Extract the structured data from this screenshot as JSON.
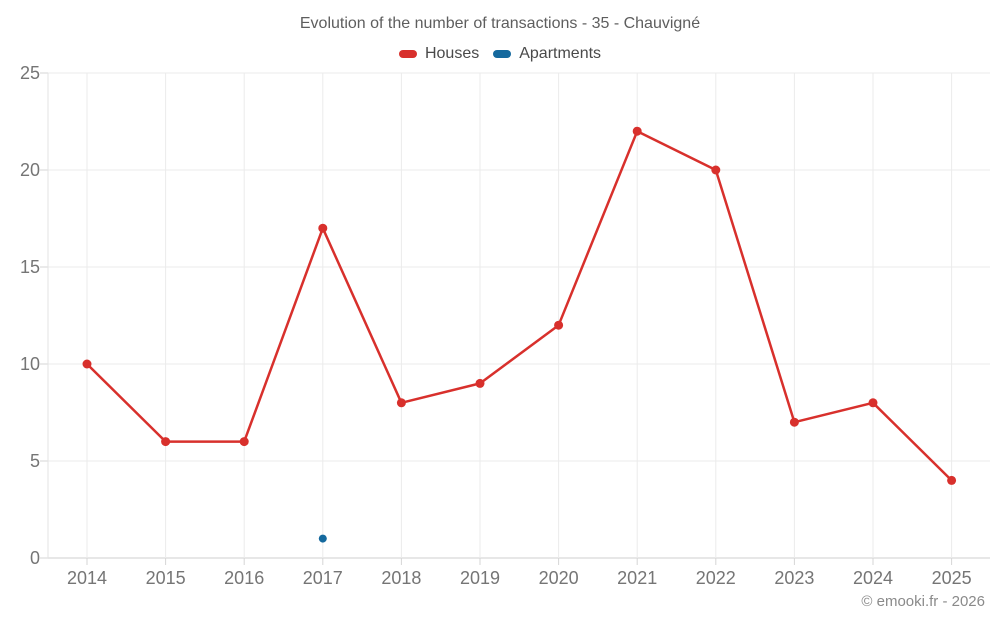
{
  "header": {
    "title": "Evolution of the number of transactions - 35 - Chauvigné"
  },
  "legend": {
    "items": [
      {
        "label": "Houses",
        "color": "#d8302c"
      },
      {
        "label": "Apartments",
        "color": "#15699e"
      }
    ]
  },
  "footer": {
    "copyright": "© emooki.fr - 2026"
  },
  "colors": {
    "houses": "#d8302c",
    "apartments": "#15699e",
    "gridline": "#ebebeb",
    "axis_line": "#cfcfcf",
    "tick_mark": "#d6d6d6",
    "tick_text": "#757575",
    "title_text": "#5e5e5e",
    "copyright_text": "#8a8a8a"
  },
  "chart_data": {
    "type": "line",
    "title": "Evolution of the number of transactions - 35 - Chauvigné",
    "x": [
      2014,
      2015,
      2016,
      2017,
      2018,
      2019,
      2020,
      2021,
      2022,
      2023,
      2024,
      2025
    ],
    "series": [
      {
        "name": "Houses",
        "color": "#d8302c",
        "marker_radius": 4.5,
        "values": [
          10,
          6,
          6,
          17,
          8,
          9,
          12,
          22,
          20,
          7,
          8,
          4
        ]
      },
      {
        "name": "Apartments",
        "color": "#15699e",
        "marker_radius": 4,
        "values": [
          null,
          null,
          null,
          1,
          null,
          null,
          null,
          null,
          null,
          null,
          null,
          null
        ]
      }
    ],
    "xlabel": "",
    "ylabel": "",
    "ylim": [
      0,
      25
    ],
    "yticks": [
      0,
      5,
      10,
      15,
      20,
      25
    ],
    "grid": true,
    "legend_position": "top"
  }
}
